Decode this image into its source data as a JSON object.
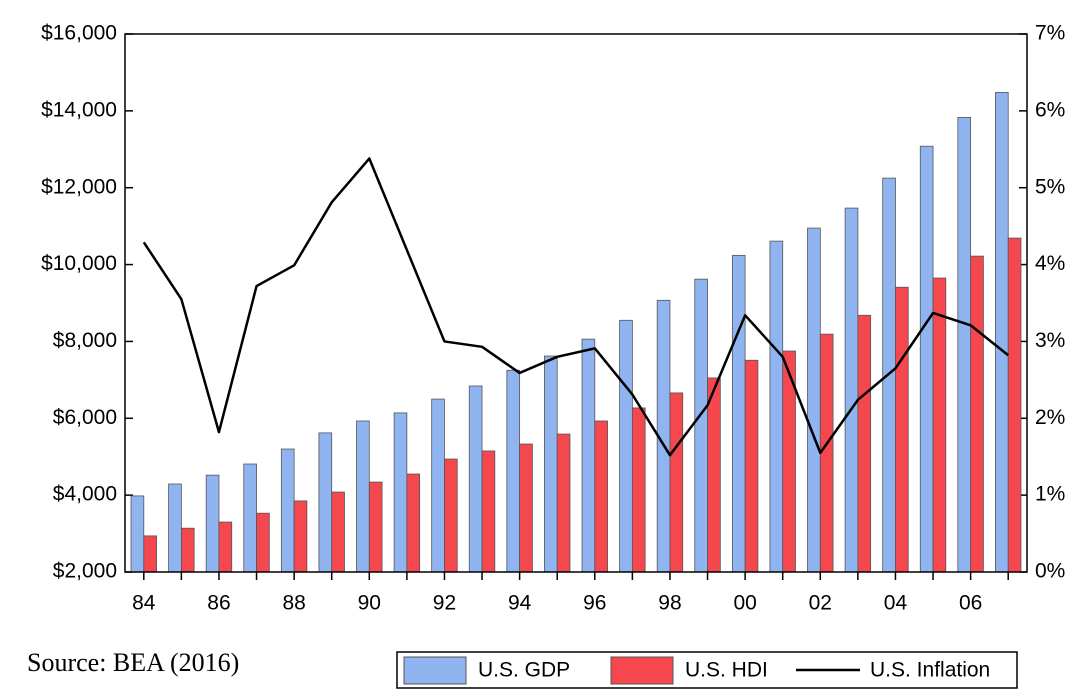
{
  "chart_data": {
    "type": "bar_line",
    "source": "Source: BEA (2016)",
    "categories": [
      "84",
      null,
      "86",
      null,
      "88",
      null,
      "90",
      null,
      "92",
      null,
      "94",
      null,
      "96",
      null,
      "98",
      null,
      "00",
      null,
      "02",
      null,
      "04",
      null,
      "06",
      null
    ],
    "series": [
      {
        "name": "U.S. GDP",
        "type": "bar",
        "color": "#8fb4f0",
        "values": [
          3980,
          4290,
          4520,
          4810,
          5200,
          5620,
          5930,
          6140,
          6500,
          6840,
          7250,
          7620,
          8060,
          8550,
          9070,
          9620,
          10240,
          10610,
          10950,
          11470,
          12250,
          13080,
          13830,
          14480
        ]
      },
      {
        "name": "U.S. HDI",
        "type": "bar",
        "color": "#f5484e",
        "values": [
          2940,
          3140,
          3300,
          3530,
          3850,
          4080,
          4340,
          4550,
          4940,
          5150,
          5330,
          5590,
          5930,
          6270,
          6660,
          7050,
          7510,
          7750,
          8190,
          8680,
          9410,
          9650,
          10220,
          10690
        ]
      },
      {
        "name": "U.S. Inflation",
        "type": "line",
        "axis": "y2",
        "color": "#000000",
        "values": [
          4.29,
          3.55,
          1.82,
          3.72,
          3.99,
          4.81,
          5.38,
          4.19,
          3.0,
          2.93,
          2.59,
          2.8,
          2.91,
          2.31,
          1.52,
          2.17,
          3.34,
          2.8,
          1.55,
          2.24,
          2.65,
          3.37,
          3.21,
          2.82
        ]
      }
    ],
    "ylim": [
      2000,
      16000
    ],
    "yticks": [
      {
        "value": 2000,
        "label": "$2,000"
      },
      {
        "value": 4000,
        "label": "$4,000"
      },
      {
        "value": 6000,
        "label": "$6,000"
      },
      {
        "value": 8000,
        "label": "$8,000"
      },
      {
        "value": 10000,
        "label": "$10,000"
      },
      {
        "value": 12000,
        "label": "$12,000"
      },
      {
        "value": 14000,
        "label": "$14,000"
      },
      {
        "value": 16000,
        "label": "$16,000"
      }
    ],
    "y2lim": [
      0,
      7
    ],
    "y2ticks": [
      {
        "value": 0,
        "label": "0%"
      },
      {
        "value": 1,
        "label": "1%"
      },
      {
        "value": 2,
        "label": "2%"
      },
      {
        "value": 3,
        "label": "3%"
      },
      {
        "value": 4,
        "label": "4%"
      },
      {
        "value": 5,
        "label": "5%"
      },
      {
        "value": 6,
        "label": "6%"
      },
      {
        "value": 7,
        "label": "7%"
      }
    ],
    "grid": false,
    "legend": "bottom"
  }
}
